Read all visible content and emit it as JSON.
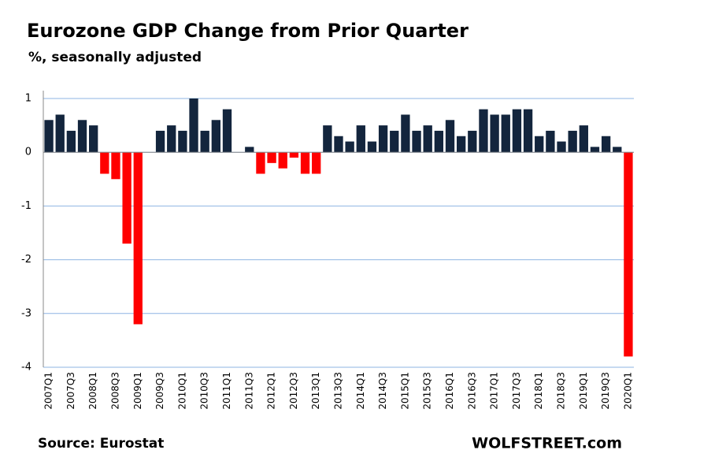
{
  "chart_data": {
    "type": "bar",
    "title": "Eurozone GDP Change from Prior Quarter",
    "subtitle": "%, seasonally adjusted",
    "source": "Source: Eurostat",
    "brand": "WOLFSTREET.com",
    "categories": [
      "2007Q1",
      null,
      "2007Q3",
      null,
      "2008Q1",
      null,
      "2008Q3",
      null,
      "2009Q1",
      null,
      "2009Q3",
      null,
      "2010Q1",
      null,
      "2010Q3",
      null,
      "2011Q1",
      null,
      "2011Q3",
      null,
      "2012Q1",
      null,
      "2012Q3",
      null,
      "2013Q1",
      null,
      "2013Q3",
      null,
      "2014Q1",
      null,
      "2014Q3",
      null,
      "2015Q1",
      null,
      "2015Q3",
      null,
      "2016Q1",
      null,
      "2016Q3",
      null,
      "2017Q1",
      null,
      "2017Q3",
      null,
      "2018Q1",
      null,
      "2018Q3",
      null,
      "2019Q1",
      null,
      "2019Q3",
      null,
      "2020Q1"
    ],
    "values": [
      0.6,
      0.7,
      0.4,
      0.6,
      0.5,
      -0.4,
      -0.5,
      -1.7,
      -3.2,
      0,
      0.4,
      0.5,
      0.4,
      1.0,
      0.4,
      0.6,
      0.8,
      0,
      0.1,
      -0.4,
      -0.2,
      -0.3,
      -0.1,
      -0.4,
      -0.4,
      0.5,
      0.3,
      0.2,
      0.5,
      0.2,
      0.5,
      0.4,
      0.7,
      0.4,
      0.5,
      0.4,
      0.6,
      0.3,
      0.4,
      0.8,
      0.7,
      0.7,
      0.8,
      0.8,
      0.3,
      0.4,
      0.2,
      0.4,
      0.5,
      0.1,
      0.3,
      0.1,
      -3.8
    ],
    "positive_color": "#13253d",
    "negative_color": "#ff0000",
    "ylim": [
      -4,
      1
    ],
    "yticks": [
      -4,
      -3,
      -2,
      -1,
      0,
      1
    ],
    "grid": true
  }
}
